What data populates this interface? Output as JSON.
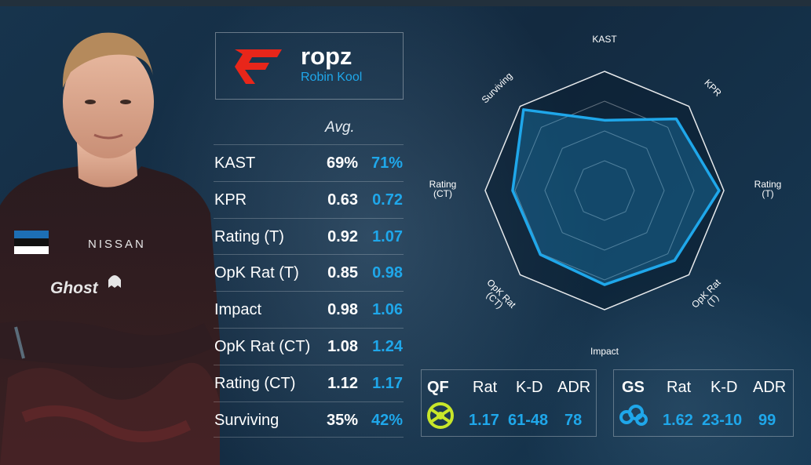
{
  "player": {
    "nickname": "ropz",
    "real_name": "Robin Kool",
    "jersey_text": "NISSAN",
    "jersey_logo_text": "Ghost"
  },
  "colors": {
    "accent": "#1fa7ea",
    "team_red": "#e8261a",
    "background": "#163048"
  },
  "stats": {
    "avg_header": "Avg.",
    "rows": [
      {
        "label": "KAST",
        "avg": "69%",
        "value": "71%"
      },
      {
        "label": "KPR",
        "avg": "0.63",
        "value": "0.72"
      },
      {
        "label": "Rating (T)",
        "avg": "0.92",
        "value": "1.07"
      },
      {
        "label": "OpK Rat (T)",
        "avg": "0.85",
        "value": "0.98"
      },
      {
        "label": "Impact",
        "avg": "0.98",
        "value": "1.06"
      },
      {
        "label": "OpK Rat (CT)",
        "avg": "1.08",
        "value": "1.24"
      },
      {
        "label": "Rating (CT)",
        "avg": "1.12",
        "value": "1.17"
      },
      {
        "label": "Surviving",
        "avg": "35%",
        "value": "42%"
      }
    ]
  },
  "radar": {
    "axes": [
      "KAST",
      "KPR",
      "Rating\n(T)",
      "OpK Rat\n(T)",
      "Impact",
      "OpK Rat\n(CT)",
      "Rating\n(CT)",
      "Surviving"
    ],
    "rings": 4,
    "values": [
      0.59,
      0.85,
      0.96,
      0.83,
      0.79,
      0.76,
      0.77,
      0.96
    ]
  },
  "matches": [
    {
      "stage": "QF",
      "headers": [
        "Rat",
        "K-D",
        "ADR"
      ],
      "rating": "1.17",
      "kd": "61-48",
      "adr": "78",
      "team_icon": "ninjas-in-pyjamas-logo-icon"
    },
    {
      "stage": "GS",
      "headers": [
        "Rat",
        "K-D",
        "ADR"
      ],
      "rating": "1.62",
      "kd": "23-10",
      "adr": "99",
      "team_icon": "cloud9-logo-icon"
    }
  ]
}
